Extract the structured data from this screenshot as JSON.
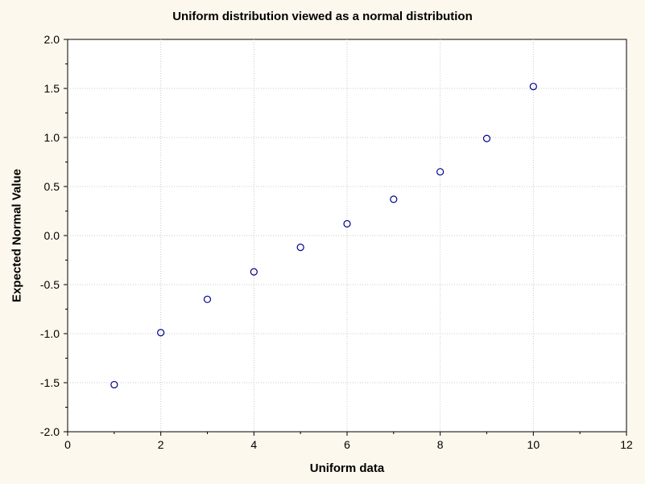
{
  "chart_data": {
    "type": "scatter",
    "title": "Uniform distribution viewed as a normal distribution",
    "xlabel": "Uniform data",
    "ylabel": "Expected Normal Value",
    "xlim": [
      0,
      12
    ],
    "ylim": [
      -2.0,
      2.0
    ],
    "x_ticks": [
      "0",
      "2",
      "4",
      "6",
      "8",
      "10",
      "12"
    ],
    "y_ticks": [
      "2.0",
      "1.5",
      "1.0",
      "0.5",
      "0.0",
      "-0.5",
      "-1.0",
      "-1.5",
      "-2.0"
    ],
    "grid": true,
    "series": [
      {
        "x": [
          1,
          2,
          3,
          4,
          5,
          6,
          7,
          8,
          9,
          10
        ],
        "y": [
          -1.52,
          -0.99,
          -0.65,
          -0.37,
          -0.12,
          0.12,
          0.37,
          0.65,
          0.99,
          1.52
        ]
      }
    ],
    "colors": {
      "background": "#fdf8ed",
      "plot_area": "#ffffff",
      "marker": "#00008b",
      "grid": "#c8c8c8"
    }
  }
}
